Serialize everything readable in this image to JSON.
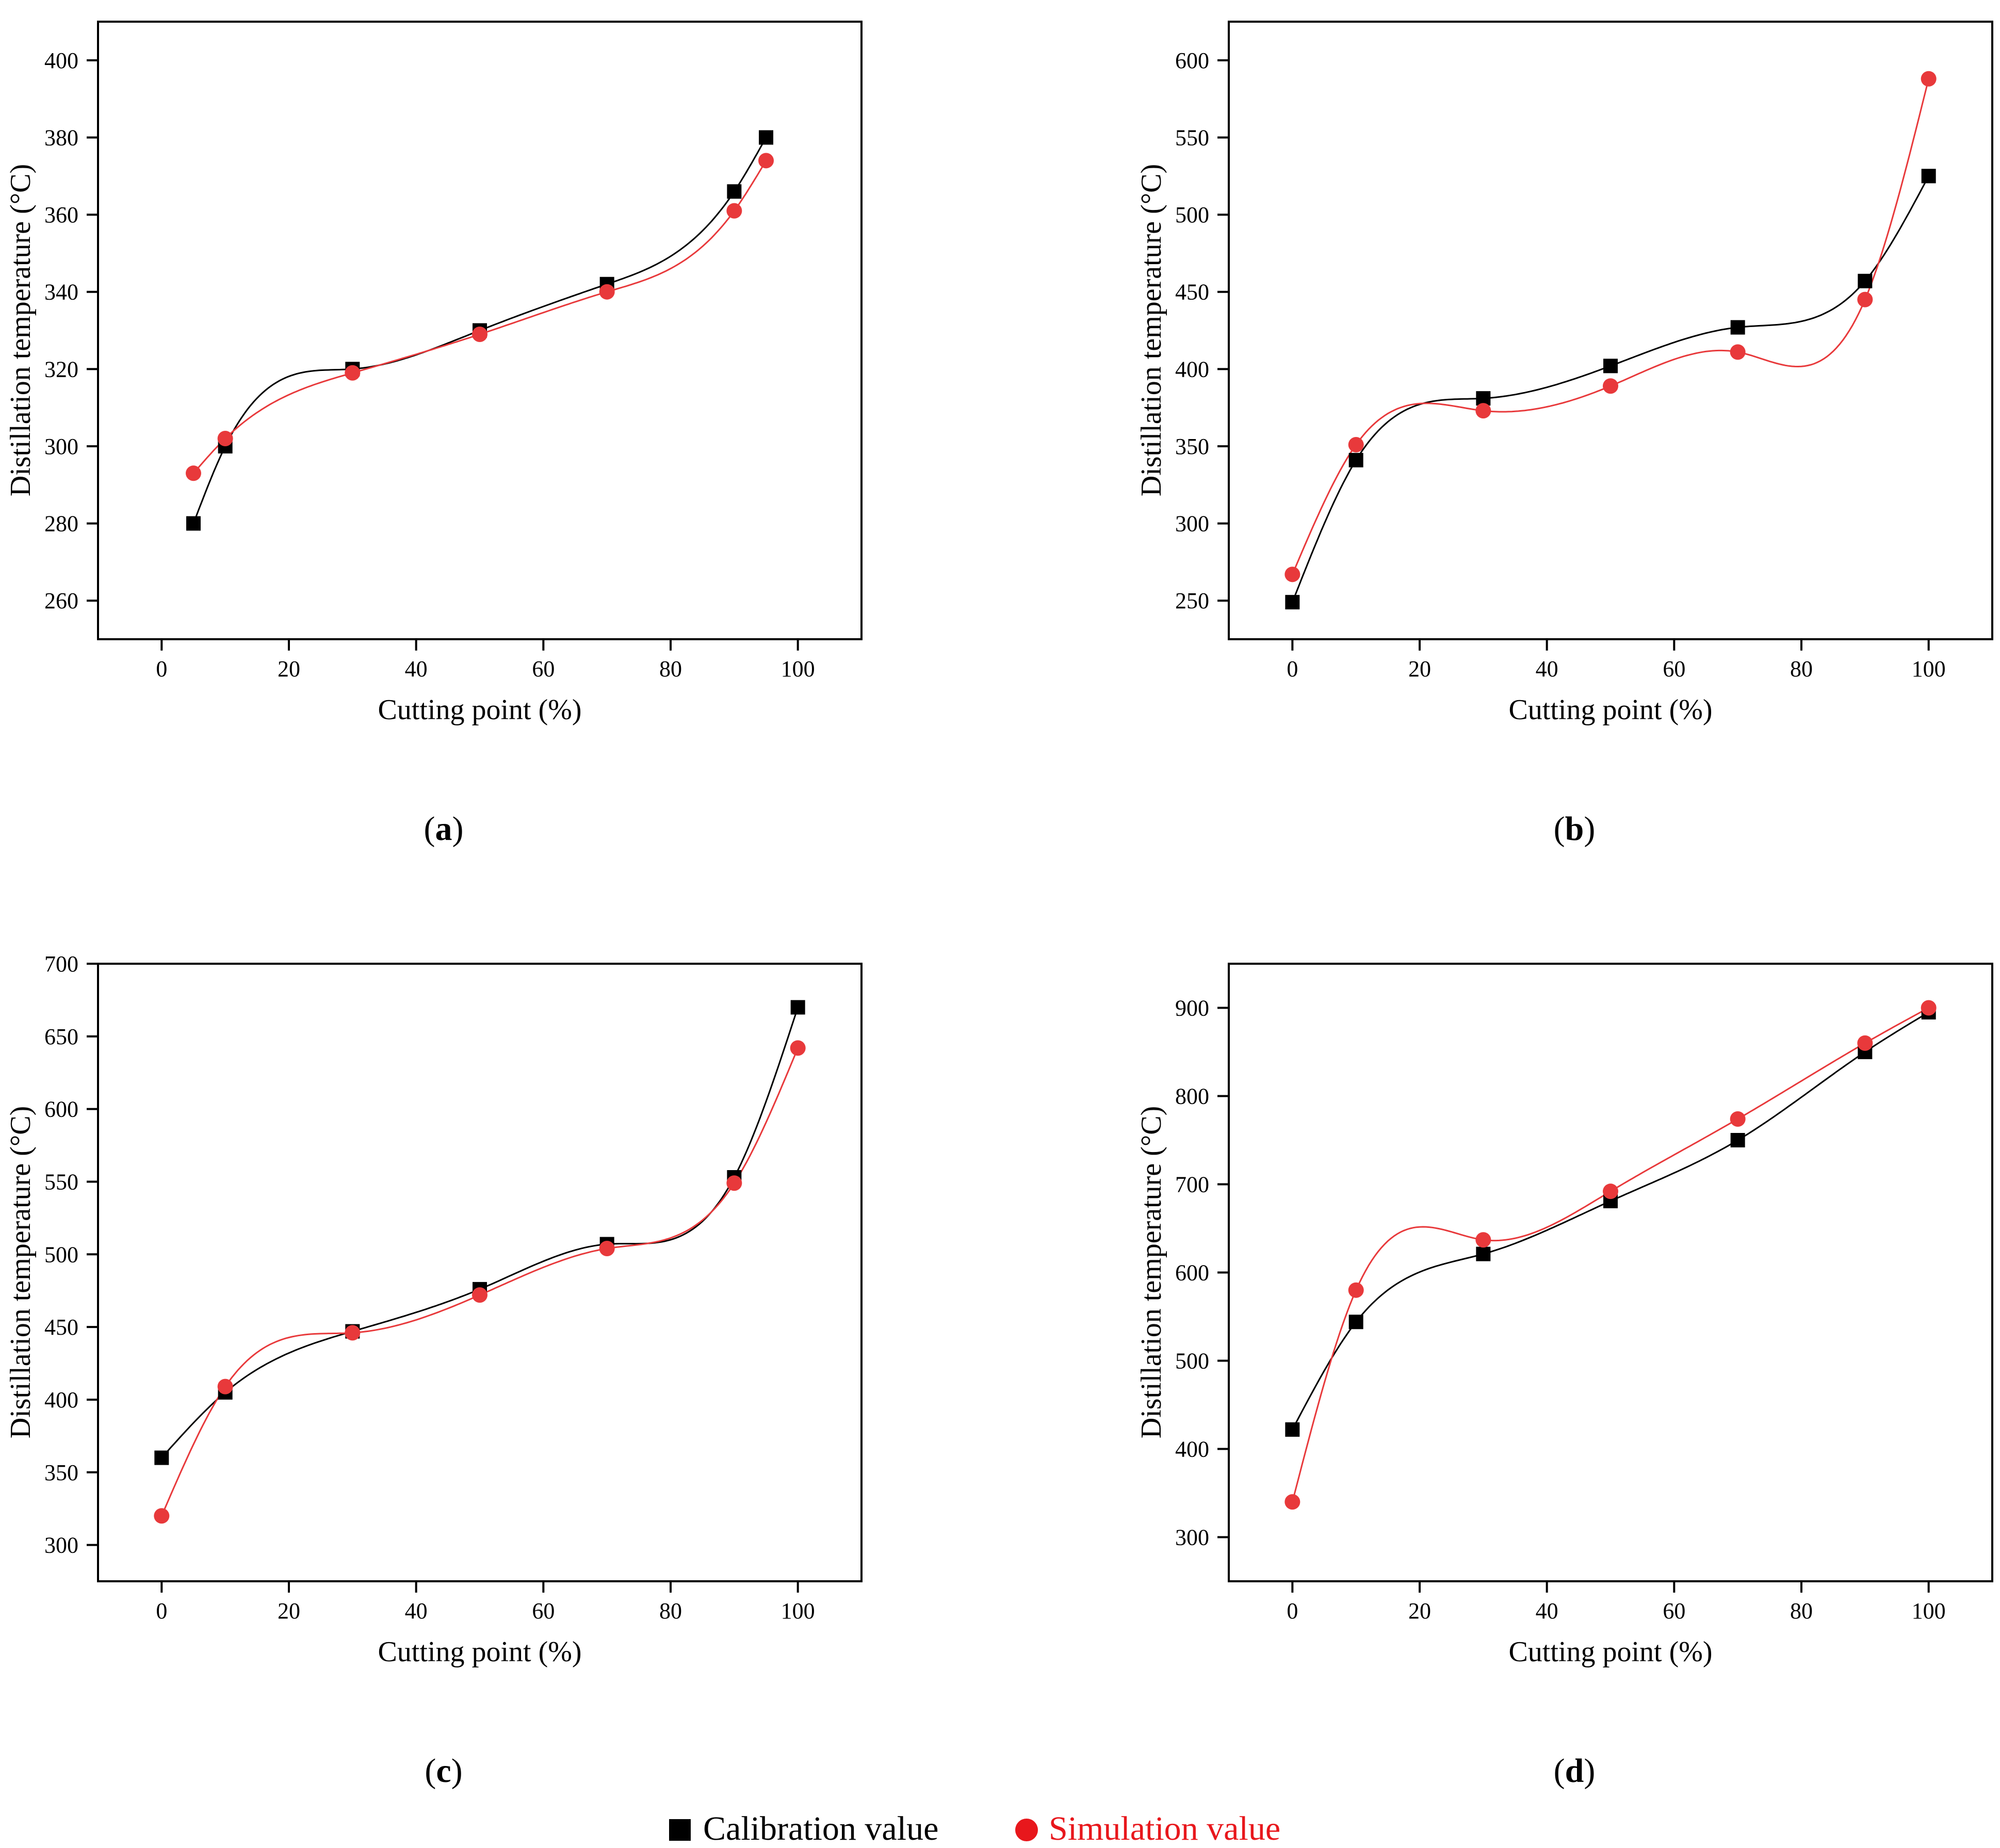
{
  "legend": {
    "calibration_label": "Calibration value",
    "simulation_label": "Simulation value"
  },
  "colors": {
    "calibration": "#000000",
    "simulation": "#e8393b",
    "simulation_legend_text": "#e8171c"
  },
  "chart_data": [
    {
      "id": "a",
      "type": "line",
      "tag": "a",
      "xlabel": "Cutting point (%)",
      "ylabel": "Distillation temperature (°C)",
      "xlim": [
        -10,
        110
      ],
      "ylim": [
        250,
        410
      ],
      "xticks": [
        0,
        20,
        40,
        60,
        80,
        100
      ],
      "yticks": [
        260,
        280,
        300,
        320,
        340,
        360,
        380,
        400
      ],
      "series": [
        {
          "name": "Calibration value",
          "marker": "square",
          "x": [
            5,
            10,
            30,
            50,
            70,
            90,
            95
          ],
          "y": [
            280,
            300,
            320,
            330,
            342,
            366,
            380
          ]
        },
        {
          "name": "Simulation value",
          "marker": "circle",
          "x": [
            5,
            10,
            30,
            50,
            70,
            90,
            95
          ],
          "y": [
            293,
            302,
            319,
            329,
            340,
            361,
            374
          ]
        }
      ]
    },
    {
      "id": "b",
      "type": "line",
      "tag": "b",
      "xlabel": "Cutting point (%)",
      "ylabel": "Distillation temperature (°C)",
      "xlim": [
        -10,
        110
      ],
      "ylim": [
        225,
        625
      ],
      "xticks": [
        0,
        20,
        40,
        60,
        80,
        100
      ],
      "yticks": [
        250,
        300,
        350,
        400,
        450,
        500,
        550,
        600
      ],
      "series": [
        {
          "name": "Calibration value",
          "marker": "square",
          "x": [
            0,
            10,
            30,
            50,
            70,
            90,
            100
          ],
          "y": [
            249,
            341,
            381,
            402,
            427,
            457,
            525
          ]
        },
        {
          "name": "Simulation value",
          "marker": "circle",
          "x": [
            0,
            10,
            30,
            50,
            70,
            90,
            100
          ],
          "y": [
            267,
            351,
            373,
            389,
            411,
            445,
            588
          ]
        }
      ]
    },
    {
      "id": "c",
      "type": "line",
      "tag": "c",
      "xlabel": "Cutting point (%)",
      "ylabel": "Distillation temperature (°C)",
      "xlim": [
        -10,
        110
      ],
      "ylim": [
        275,
        700
      ],
      "xticks": [
        0,
        20,
        40,
        60,
        80,
        100
      ],
      "yticks": [
        300,
        350,
        400,
        450,
        500,
        550,
        600,
        650,
        700
      ],
      "series": [
        {
          "name": "Calibration value",
          "marker": "square",
          "x": [
            0,
            10,
            30,
            50,
            70,
            90,
            100
          ],
          "y": [
            360,
            405,
            447,
            476,
            507,
            553,
            670
          ]
        },
        {
          "name": "Simulation value",
          "marker": "circle",
          "x": [
            0,
            10,
            30,
            50,
            70,
            90,
            100
          ],
          "y": [
            320,
            409,
            446,
            472,
            504,
            549,
            642
          ]
        }
      ]
    },
    {
      "id": "d",
      "type": "line",
      "tag": "d",
      "xlabel": "Cutting point (%)",
      "ylabel": "Distillation temperature (°C)",
      "xlim": [
        -10,
        110
      ],
      "ylim": [
        250,
        950
      ],
      "xticks": [
        0,
        20,
        40,
        60,
        80,
        100
      ],
      "yticks": [
        300,
        400,
        500,
        600,
        700,
        800,
        900
      ],
      "series": [
        {
          "name": "Calibration value",
          "marker": "square",
          "x": [
            0,
            10,
            30,
            50,
            70,
            90,
            100
          ],
          "y": [
            422,
            544,
            621,
            681,
            750,
            850,
            895
          ]
        },
        {
          "name": "Simulation value",
          "marker": "circle",
          "x": [
            0,
            10,
            30,
            50,
            70,
            90,
            100
          ],
          "y": [
            340,
            580,
            637,
            692,
            774,
            860,
            900
          ]
        }
      ]
    }
  ]
}
